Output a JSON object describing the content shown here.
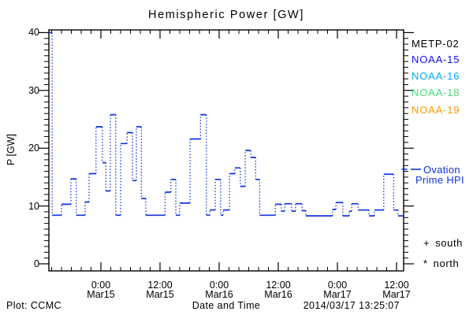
{
  "title": "Hemispheric Power [GW]",
  "colors": {
    "background": "#ffffff",
    "frame": "#000000",
    "data_line": "#1133dd",
    "ovation_blue": "#1133dd"
  },
  "axes": {
    "y_label": "P [GW]",
    "x_label": "Date and Time",
    "y_ticks": [
      0,
      10,
      20,
      30,
      40
    ],
    "y_minor_step": 1,
    "x_ticks": [
      {
        "t": 0,
        "time": "0:00",
        "date": "Mar15"
      },
      {
        "t": 12,
        "time": "12:00",
        "date": "Mar15"
      },
      {
        "t": 24,
        "time": "0:00",
        "date": "Mar16"
      },
      {
        "t": 36,
        "time": "12:00",
        "date": "Mar16"
      },
      {
        "t": 48,
        "time": "0:00",
        "date": "Mar17"
      },
      {
        "t": 60,
        "time": "12:00",
        "date": "Mar17"
      }
    ],
    "x_minor_step_hours": 2,
    "x_range_hours": [
      -10.6,
      61.4
    ]
  },
  "chart_data": {
    "type": "line",
    "title": "Hemispheric Power [GW]",
    "xlabel": "Date and Time",
    "ylabel": "P [GW]",
    "ylim": [
      0,
      40
    ],
    "x_unit": "hours relative to 2014-03-15 00:00",
    "x_range": [
      -10.6,
      61.4
    ],
    "style": "steps-post, solid horizontal segments with dotted vertical connectors",
    "legend_position": "right-outside",
    "grid": false,
    "series": [
      {
        "name": "Ovation Prime HPI",
        "color": "#1133dd",
        "points": [
          [
            -10.6,
            40.0
          ],
          [
            -9.9,
            8.4
          ],
          [
            -8.0,
            10.3
          ],
          [
            -6.1,
            14.7
          ],
          [
            -5.0,
            8.4
          ],
          [
            -3.2,
            10.7
          ],
          [
            -2.4,
            15.6
          ],
          [
            -1.0,
            23.7
          ],
          [
            0.3,
            17.5
          ],
          [
            1.0,
            12.6
          ],
          [
            1.9,
            25.8
          ],
          [
            3.0,
            8.4
          ],
          [
            4.0,
            20.8
          ],
          [
            5.3,
            22.7
          ],
          [
            6.4,
            14.4
          ],
          [
            7.2,
            23.7
          ],
          [
            8.2,
            11.3
          ],
          [
            9.1,
            8.4
          ],
          [
            13.0,
            12.4
          ],
          [
            14.2,
            14.6
          ],
          [
            15.2,
            8.4
          ],
          [
            16.0,
            10.5
          ],
          [
            18.1,
            21.6
          ],
          [
            20.2,
            25.8
          ],
          [
            21.4,
            8.4
          ],
          [
            22.1,
            9.3
          ],
          [
            23.2,
            14.6
          ],
          [
            24.3,
            8.4
          ],
          [
            24.8,
            9.3
          ],
          [
            26.1,
            15.6
          ],
          [
            27.2,
            16.6
          ],
          [
            28.3,
            13.4
          ],
          [
            29.3,
            19.6
          ],
          [
            30.4,
            18.4
          ],
          [
            31.4,
            14.6
          ],
          [
            32.2,
            8.4
          ],
          [
            35.4,
            10.3
          ],
          [
            36.6,
            9.1
          ],
          [
            37.3,
            10.4
          ],
          [
            38.7,
            9.1
          ],
          [
            39.5,
            10.4
          ],
          [
            40.8,
            9.2
          ],
          [
            41.6,
            8.3
          ],
          [
            47.0,
            9.4
          ],
          [
            47.7,
            10.6
          ],
          [
            49.1,
            8.3
          ],
          [
            50.4,
            9.1
          ],
          [
            50.9,
            10.4
          ],
          [
            52.2,
            9.3
          ],
          [
            54.4,
            8.3
          ],
          [
            55.5,
            9.3
          ],
          [
            57.4,
            15.5
          ],
          [
            59.4,
            9.3
          ],
          [
            60.3,
            8.3
          ]
        ]
      }
    ]
  },
  "legend": {
    "satellites": [
      {
        "label": "METP-02",
        "color": "#000000"
      },
      {
        "label": "NOAA-15",
        "color": "#1111ee"
      },
      {
        "label": "NOAA-16",
        "color": "#00aaff"
      },
      {
        "label": "NOAA-18",
        "color": "#44dd77"
      },
      {
        "label": "NOAA-19",
        "color": "#ff9900"
      }
    ],
    "ovation": {
      "line1": "Ovation",
      "line2": "Prime HPI"
    },
    "south": {
      "marker": "+",
      "label": "south"
    },
    "north": {
      "marker": "*",
      "label": "north"
    }
  },
  "footer": {
    "left": "Plot: CCMC",
    "right": "2014/03/17 13:25:07"
  }
}
